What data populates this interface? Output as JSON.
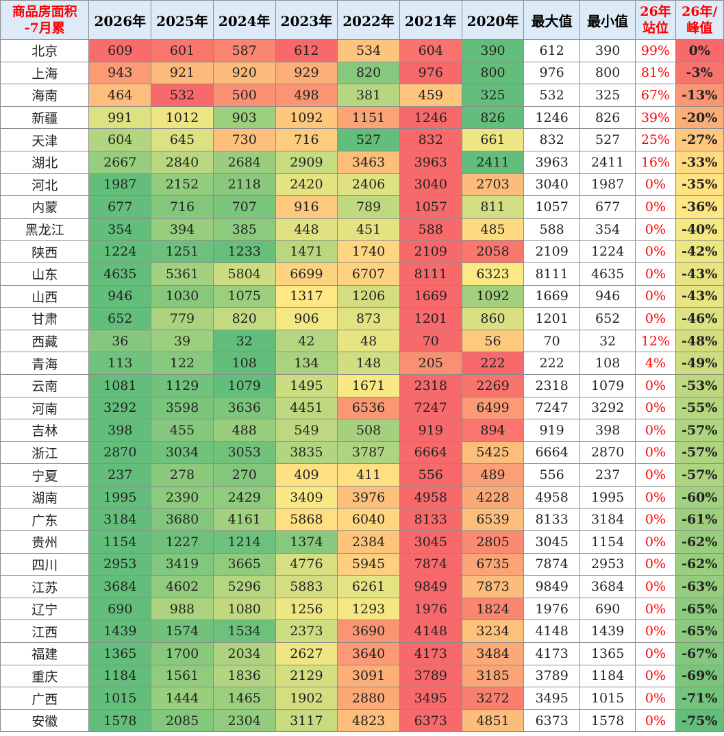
{
  "header": {
    "province": "商品房面积\n-7月累",
    "years": [
      "2026年",
      "2025年",
      "2024年",
      "2023年",
      "2022年",
      "2021年",
      "2020年"
    ],
    "max": "最大值",
    "min": "最小值",
    "position": "26年\n站位",
    "ratio": "26年/\n峰值"
  },
  "colors": {
    "scale_low": "#63be7b",
    "scale_mid": "#ffeb84",
    "scale_high": "#f8696b",
    "header_bg": "#dcebf7",
    "accent_red": "#ff0000"
  },
  "rows": [
    {
      "name": "北京",
      "v": [
        609,
        601,
        587,
        612,
        534,
        604,
        390
      ],
      "max": 612,
      "min": 390,
      "pos": "99%",
      "ratio": "0%"
    },
    {
      "name": "上海",
      "v": [
        943,
        921,
        920,
        929,
        820,
        976,
        800
      ],
      "max": 976,
      "min": 800,
      "pos": "81%",
      "ratio": "-3%"
    },
    {
      "name": "海南",
      "v": [
        464,
        532,
        500,
        498,
        381,
        459,
        325
      ],
      "max": 532,
      "min": 325,
      "pos": "67%",
      "ratio": "-13%"
    },
    {
      "name": "新疆",
      "v": [
        991,
        1012,
        903,
        1092,
        1151,
        1246,
        826
      ],
      "max": 1246,
      "min": 826,
      "pos": "39%",
      "ratio": "-20%"
    },
    {
      "name": "天津",
      "v": [
        604,
        645,
        730,
        716,
        527,
        832,
        661
      ],
      "max": 832,
      "min": 527,
      "pos": "25%",
      "ratio": "-27%"
    },
    {
      "name": "湖北",
      "v": [
        2667,
        2840,
        2684,
        2909,
        3463,
        3963,
        2411
      ],
      "max": 3963,
      "min": 2411,
      "pos": "16%",
      "ratio": "-33%"
    },
    {
      "name": "河北",
      "v": [
        1987,
        2152,
        2118,
        2420,
        2406,
        3040,
        2703
      ],
      "max": 3040,
      "min": 1987,
      "pos": "0%",
      "ratio": "-35%"
    },
    {
      "name": "内蒙",
      "v": [
        677,
        716,
        707,
        916,
        789,
        1057,
        811
      ],
      "max": 1057,
      "min": 677,
      "pos": "0%",
      "ratio": "-36%"
    },
    {
      "name": "黑龙江",
      "v": [
        354,
        394,
        385,
        448,
        451,
        588,
        485
      ],
      "max": 588,
      "min": 354,
      "pos": "0%",
      "ratio": "-40%"
    },
    {
      "name": "陕西",
      "v": [
        1224,
        1251,
        1233,
        1471,
        1740,
        2109,
        2058
      ],
      "max": 2109,
      "min": 1224,
      "pos": "0%",
      "ratio": "-42%"
    },
    {
      "name": "山东",
      "v": [
        4635,
        5361,
        5804,
        6699,
        6707,
        8111,
        6323
      ],
      "max": 8111,
      "min": 4635,
      "pos": "0%",
      "ratio": "-43%"
    },
    {
      "name": "山西",
      "v": [
        946,
        1030,
        1075,
        1317,
        1206,
        1669,
        1092
      ],
      "max": 1669,
      "min": 946,
      "pos": "0%",
      "ratio": "-43%"
    },
    {
      "name": "甘肃",
      "v": [
        652,
        779,
        820,
        906,
        873,
        1201,
        860
      ],
      "max": 1201,
      "min": 652,
      "pos": "0%",
      "ratio": "-46%"
    },
    {
      "name": "西藏",
      "v": [
        36,
        39,
        32,
        42,
        48,
        70,
        56
      ],
      "max": 70,
      "min": 32,
      "pos": "12%",
      "ratio": "-48%"
    },
    {
      "name": "青海",
      "v": [
        113,
        122,
        108,
        134,
        148,
        205,
        222
      ],
      "max": 222,
      "min": 108,
      "pos": "4%",
      "ratio": "-49%"
    },
    {
      "name": "云南",
      "v": [
        1081,
        1129,
        1079,
        1495,
        1671,
        2318,
        2269
      ],
      "max": 2318,
      "min": 1079,
      "pos": "0%",
      "ratio": "-53%"
    },
    {
      "name": "河南",
      "v": [
        3292,
        3598,
        3636,
        4451,
        6536,
        7247,
        6499
      ],
      "max": 7247,
      "min": 3292,
      "pos": "0%",
      "ratio": "-55%"
    },
    {
      "name": "吉林",
      "v": [
        398,
        455,
        488,
        549,
        508,
        919,
        894
      ],
      "max": 919,
      "min": 398,
      "pos": "0%",
      "ratio": "-57%"
    },
    {
      "name": "浙江",
      "v": [
        2870,
        3034,
        3053,
        3835,
        3787,
        6664,
        5425
      ],
      "max": 6664,
      "min": 2870,
      "pos": "0%",
      "ratio": "-57%"
    },
    {
      "name": "宁夏",
      "v": [
        237,
        278,
        270,
        409,
        411,
        556,
        489
      ],
      "max": 556,
      "min": 237,
      "pos": "0%",
      "ratio": "-57%"
    },
    {
      "name": "湖南",
      "v": [
        1995,
        2390,
        2429,
        3409,
        3976,
        4958,
        4228
      ],
      "max": 4958,
      "min": 1995,
      "pos": "0%",
      "ratio": "-60%"
    },
    {
      "name": "广东",
      "v": [
        3184,
        3680,
        4161,
        5868,
        6040,
        8133,
        6539
      ],
      "max": 8133,
      "min": 3184,
      "pos": "0%",
      "ratio": "-61%"
    },
    {
      "name": "贵州",
      "v": [
        1154,
        1227,
        1214,
        1374,
        2384,
        3045,
        2805
      ],
      "max": 3045,
      "min": 1154,
      "pos": "0%",
      "ratio": "-62%"
    },
    {
      "name": "四川",
      "v": [
        2953,
        3419,
        3665,
        4776,
        5945,
        7874,
        6735
      ],
      "max": 7874,
      "min": 2953,
      "pos": "0%",
      "ratio": "-62%"
    },
    {
      "name": "江苏",
      "v": [
        3684,
        4602,
        5296,
        5883,
        6261,
        9849,
        7873
      ],
      "max": 9849,
      "min": 3684,
      "pos": "0%",
      "ratio": "-63%"
    },
    {
      "name": "辽宁",
      "v": [
        690,
        988,
        1080,
        1256,
        1293,
        1976,
        1824
      ],
      "max": 1976,
      "min": 690,
      "pos": "0%",
      "ratio": "-65%"
    },
    {
      "name": "江西",
      "v": [
        1439,
        1574,
        1534,
        2373,
        3690,
        4148,
        3234
      ],
      "max": 4148,
      "min": 1439,
      "pos": "0%",
      "ratio": "-65%"
    },
    {
      "name": "福建",
      "v": [
        1365,
        1700,
        2034,
        2627,
        3640,
        4173,
        3484
      ],
      "max": 4173,
      "min": 1365,
      "pos": "0%",
      "ratio": "-67%"
    },
    {
      "name": "重庆",
      "v": [
        1184,
        1561,
        1836,
        2129,
        3091,
        3789,
        3185
      ],
      "max": 3789,
      "min": 1184,
      "pos": "0%",
      "ratio": "-69%"
    },
    {
      "name": "广西",
      "v": [
        1015,
        1444,
        1465,
        1902,
        2880,
        3495,
        3272
      ],
      "max": 3495,
      "min": 1015,
      "pos": "0%",
      "ratio": "-71%"
    },
    {
      "name": "安徽",
      "v": [
        1578,
        2085,
        2304,
        3117,
        4823,
        6373,
        4851
      ],
      "max": 6373,
      "min": 1578,
      "pos": "0%",
      "ratio": "-75%"
    }
  ]
}
